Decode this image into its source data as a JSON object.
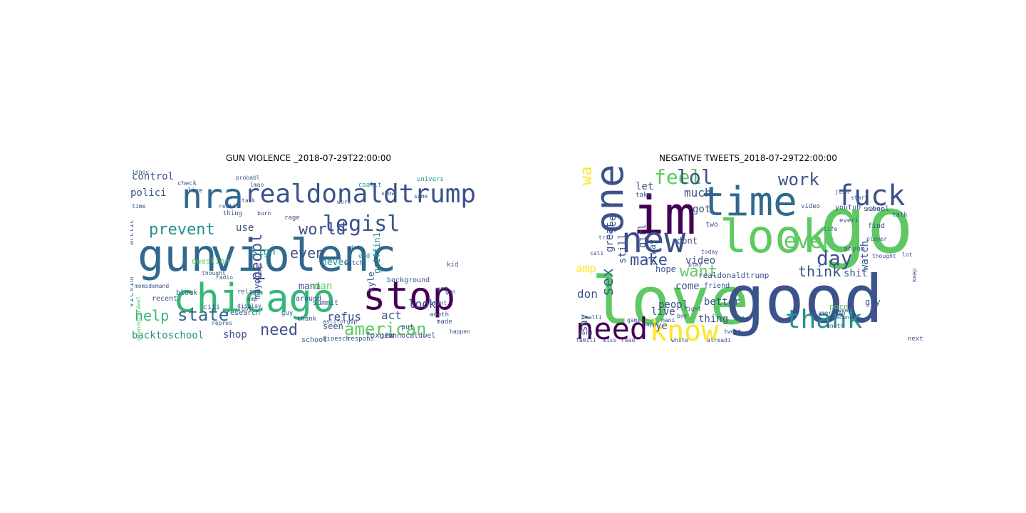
{
  "figure": {
    "panels": [
      {
        "title": "GUN VIOLENCE _2018-07-29T22:00:00"
      },
      {
        "title": "NEGATIVE TWEETS_2018-07-29T22:00:00"
      }
    ]
  },
  "chart_data": [
    {
      "type": "wordcloud",
      "title": "GUN VIOLENCE _2018-07-29T22:00:00",
      "words": [
        {
          "text": "gun",
          "color": "#31688e"
        },
        {
          "text": "violenc",
          "color": "#31688e"
        },
        {
          "text": "chicago",
          "color": "#35b779"
        },
        {
          "text": "stop",
          "color": "#440154"
        },
        {
          "text": "nra",
          "color": "#31688e"
        },
        {
          "text": "realdonaldtrump",
          "color": "#3b528b"
        },
        {
          "text": "legisl",
          "color": "#3b528b"
        },
        {
          "text": "prevent",
          "color": "#21918c"
        },
        {
          "text": "world",
          "color": "#3b528b"
        },
        {
          "text": "peopl",
          "color": "#3b528b"
        },
        {
          "text": "even",
          "color": "#3b528b"
        },
        {
          "text": "american",
          "color": "#5ec962"
        },
        {
          "text": "state",
          "color": "#31688e"
        },
        {
          "text": "help",
          "color": "#35b779"
        },
        {
          "text": "need",
          "color": "#3b528b"
        },
        {
          "text": "backtoschool",
          "color": "#21918c"
        },
        {
          "text": "shop",
          "color": "#3b528b"
        },
        {
          "text": "look",
          "color": "#3b528b"
        },
        {
          "text": "refus",
          "color": "#3b528b"
        },
        {
          "text": "act",
          "color": "#3b528b"
        },
        {
          "text": "control",
          "color": "#3b528b"
        },
        {
          "text": "polici",
          "color": "#3b528b"
        },
        {
          "text": "use",
          "color": "#3b528b"
        },
        {
          "text": "man",
          "color": "#5ec962"
        },
        {
          "text": "sign",
          "color": "#21918c"
        },
        {
          "text": "never",
          "color": "#21918c"
        },
        {
          "text": "mani",
          "color": "#3b528b"
        },
        {
          "text": "kyle",
          "color": "#3b528b"
        },
        {
          "text": "griffin1",
          "color": "#21918c"
        },
        {
          "text": "mayor",
          "color": "#3b528b"
        },
        {
          "text": "victim",
          "color": "#21918c"
        },
        {
          "text": "question",
          "color": "#5ec962"
        },
        {
          "text": "seen",
          "color": "#3b528b"
        },
        {
          "text": "foxnew",
          "color": "#3b528b"
        },
        {
          "text": "giannocaldwel",
          "color": "#3b528b"
        },
        {
          "text": "background",
          "color": "#3b528b"
        },
        {
          "text": "recent",
          "color": "#3b528b"
        },
        {
          "text": "block",
          "color": "#3b528b"
        },
        {
          "text": "arctic",
          "color": "#3b528b"
        },
        {
          "text": "summit",
          "color": "#3b528b"
        },
        {
          "text": "put",
          "color": "#3b528b"
        },
        {
          "text": "coalit",
          "color": "#21918c"
        },
        {
          "text": "univers",
          "color": "#21918c"
        },
        {
          "text": "research",
          "color": "#3b528b"
        },
        {
          "text": "school",
          "color": "#3b528b"
        },
        {
          "text": "respons",
          "color": "#3b528b"
        },
        {
          "text": "citi",
          "color": "#3b528b"
        },
        {
          "text": "around",
          "color": "#3b528b"
        },
        {
          "text": "religi",
          "color": "#3b528b"
        },
        {
          "text": "live",
          "color": "#3b528b"
        },
        {
          "text": "check",
          "color": "#3b528b"
        },
        {
          "text": "end",
          "color": "#21918c"
        },
        {
          "text": "watch",
          "color": "#3b528b"
        },
        {
          "text": "trump",
          "color": "#3b528b"
        },
        {
          "text": "thing",
          "color": "#3b528b"
        },
        {
          "text": "rage",
          "color": "#3b528b"
        },
        {
          "text": "yet",
          "color": "#3b528b"
        },
        {
          "text": "kid",
          "color": "#3b528b"
        },
        {
          "text": "show",
          "color": "#3b528b"
        },
        {
          "text": "guy",
          "color": "#3b528b"
        },
        {
          "text": "thank",
          "color": "#3b528b"
        },
        {
          "text": "anoth",
          "color": "#3b528b"
        },
        {
          "text": "made",
          "color": "#3b528b"
        },
        {
          "text": "gun",
          "color": "#3b528b"
        },
        {
          "text": "talk",
          "color": "#3b528b"
        },
        {
          "text": "realli",
          "color": "#3b528b"
        },
        {
          "text": "probabl",
          "color": "#3b528b"
        },
        {
          "text": "innoc",
          "color": "#3b528b"
        },
        {
          "text": "time",
          "color": "#3b528b"
        },
        {
          "text": "momsdemand",
          "color": "#3b528b"
        },
        {
          "text": "anyth",
          "color": "#3b528b"
        },
        {
          "text": "dioesch",
          "color": "#3b528b"
        },
        {
          "text": "display",
          "color": "#3b528b"
        },
        {
          "text": "amp",
          "color": "#3b528b"
        },
        {
          "text": "got",
          "color": "#3b528b"
        },
        {
          "text": "giannocaldwel",
          "color": "#5ec962"
        },
        {
          "text": "repres",
          "color": "#3b528b"
        },
        {
          "text": "asliforgvp",
          "color": "#3b528b"
        },
        {
          "text": "print",
          "color": "#3b528b"
        },
        {
          "text": "happen",
          "color": "#3b528b"
        },
        {
          "text": "same",
          "color": "#3b528b"
        },
        {
          "text": "burn",
          "color": "#3b528b"
        },
        {
          "text": "radio",
          "color": "#3b528b"
        },
        {
          "text": "thought",
          "color": "#3b528b"
        },
        {
          "text": "lmao",
          "color": "#3b528b"
        },
        {
          "text": "aint",
          "color": "#3b528b"
        },
        {
          "text": "work",
          "color": "#3b528b"
        }
      ]
    },
    {
      "type": "wordcloud",
      "title": "NEGATIVE TWEETS_2018-07-29T22:00:00",
      "words": [
        {
          "text": "love",
          "color": "#5ec962"
        },
        {
          "text": "good",
          "color": "#3b528b"
        },
        {
          "text": "go",
          "color": "#5ec962"
        },
        {
          "text": "im",
          "color": "#440154"
        },
        {
          "text": "time",
          "color": "#31688e"
        },
        {
          "text": "look",
          "color": "#5ec962"
        },
        {
          "text": "new",
          "color": "#3b528b"
        },
        {
          "text": "one",
          "color": "#3b528b"
        },
        {
          "text": "fuck",
          "color": "#3b528b"
        },
        {
          "text": "work",
          "color": "#3b528b"
        },
        {
          "text": "need",
          "color": "#440154"
        },
        {
          "text": "know",
          "color": "#fde725"
        },
        {
          "text": "thank",
          "color": "#21918c"
        },
        {
          "text": "day",
          "color": "#3b528b"
        },
        {
          "text": "even",
          "color": "#5ec962"
        },
        {
          "text": "feel",
          "color": "#5ec962"
        },
        {
          "text": "lol",
          "color": "#3b528b"
        },
        {
          "text": "sex",
          "color": "#31688e"
        },
        {
          "text": "way",
          "color": "#fde725"
        },
        {
          "text": "make",
          "color": "#3b528b"
        },
        {
          "text": "want",
          "color": "#5ec962"
        },
        {
          "text": "think",
          "color": "#3b528b"
        },
        {
          "text": "amp",
          "color": "#fde725"
        },
        {
          "text": "don",
          "color": "#3b528b"
        },
        {
          "text": "much",
          "color": "#3b528b"
        },
        {
          "text": "girl",
          "color": "#3b528b"
        },
        {
          "text": "still",
          "color": "#3b528b"
        },
        {
          "text": "see",
          "color": "#3b528b"
        },
        {
          "text": "got",
          "color": "#3b528b"
        },
        {
          "text": "video",
          "color": "#3b528b"
        },
        {
          "text": "watch",
          "color": "#3b528b"
        },
        {
          "text": "shit",
          "color": "#3b528b"
        },
        {
          "text": "great",
          "color": "#3b528b"
        },
        {
          "text": "come",
          "color": "#3b528b"
        },
        {
          "text": "let",
          "color": "#3b528b"
        },
        {
          "text": "say",
          "color": "#3b528b"
        },
        {
          "text": "peopl",
          "color": "#3b528b"
        },
        {
          "text": "better",
          "color": "#3b528b"
        },
        {
          "text": "thing",
          "color": "#3b528b"
        },
        {
          "text": "ye",
          "color": "#3b528b"
        },
        {
          "text": "live",
          "color": "#3b528b"
        },
        {
          "text": "alway",
          "color": "#3b528b"
        },
        {
          "text": "hope",
          "color": "#3b528b"
        },
        {
          "text": "realdonaldtrump",
          "color": "#3b528b"
        },
        {
          "text": "dont",
          "color": "#3b528b"
        },
        {
          "text": "friend",
          "color": "#3b528b"
        },
        {
          "text": "porn",
          "color": "#5ec962"
        },
        {
          "text": "guy",
          "color": "#3b528b"
        },
        {
          "text": "school",
          "color": "#3b528b"
        },
        {
          "text": "youtub",
          "color": "#3b528b"
        },
        {
          "text": "video",
          "color": "#3b528b"
        },
        {
          "text": "everi",
          "color": "#3b528b"
        },
        {
          "text": "start",
          "color": "#3b528b"
        },
        {
          "text": "talk",
          "color": "#3b528b"
        },
        {
          "text": "find",
          "color": "#3b528b"
        },
        {
          "text": "anyon",
          "color": "#3b528b"
        },
        {
          "text": "keep",
          "color": "#3b528b"
        },
        {
          "text": "next",
          "color": "#3b528b"
        },
        {
          "text": "two",
          "color": "#3b528b"
        },
        {
          "text": "take",
          "color": "#3b528b"
        },
        {
          "text": "today",
          "color": "#3b528b"
        },
        {
          "text": "play",
          "color": "#3b528b"
        },
        {
          "text": "game",
          "color": "#3b528b"
        },
        {
          "text": "happi",
          "color": "#3b528b"
        },
        {
          "text": "mani",
          "color": "#3b528b"
        },
        {
          "text": "boy",
          "color": "#3b528b"
        },
        {
          "text": "right",
          "color": "#3b528b"
        },
        {
          "text": "week",
          "color": "#3b528b"
        },
        {
          "text": "tri",
          "color": "#3b528b"
        },
        {
          "text": "cali",
          "color": "#3b528b"
        },
        {
          "text": "famili",
          "color": "#3b528b"
        },
        {
          "text": "miss",
          "color": "#3b528b"
        },
        {
          "text": "read",
          "color": "#3b528b"
        },
        {
          "text": "white",
          "color": "#3b528b"
        },
        {
          "text": "alreadi",
          "color": "#3b528b"
        },
        {
          "text": "tweet",
          "color": "#3b528b"
        },
        {
          "text": "thought",
          "color": "#3b528b"
        },
        {
          "text": "join",
          "color": "#3b528b"
        },
        {
          "text": "player",
          "color": "#3b528b"
        },
        {
          "text": "lot",
          "color": "#3b528b"
        },
        {
          "text": "life",
          "color": "#3b528b"
        },
        {
          "text": "never",
          "color": "#3b528b"
        },
        {
          "text": "word",
          "color": "#3b528b"
        },
        {
          "text": "realli",
          "color": "#3b528b"
        },
        {
          "text": "anoth",
          "color": "#3b528b"
        },
        {
          "text": "american",
          "color": "#3b528b"
        },
        {
          "text": "second",
          "color": "#3b528b"
        }
      ]
    }
  ]
}
